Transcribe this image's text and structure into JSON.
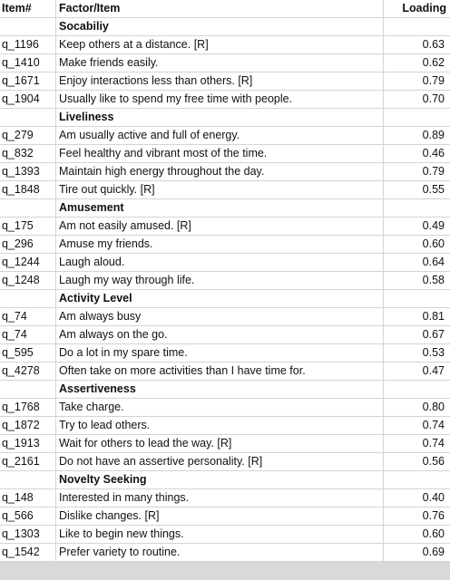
{
  "header": {
    "item": "Item#",
    "factor": "Factor/Item",
    "loading": "Loading"
  },
  "factors": [
    {
      "name": "Socabiliy",
      "items": [
        {
          "id": "q_1196",
          "text": "Keep others at a distance. [R]",
          "loading": "0.63"
        },
        {
          "id": "q_1410",
          "text": "Make friends easily.",
          "loading": "0.62"
        },
        {
          "id": "q_1671",
          "text": "Enjoy interactions less than others. [R]",
          "loading": "0.79"
        },
        {
          "id": "q_1904",
          "text": "Usually like to spend my free time with people.",
          "loading": "0.70"
        }
      ]
    },
    {
      "name": "Liveliness",
      "items": [
        {
          "id": "q_279",
          "text": "Am usually active and full of energy.",
          "loading": "0.89"
        },
        {
          "id": "q_832",
          "text": "Feel healthy and vibrant most of the time.",
          "loading": "0.46"
        },
        {
          "id": "q_1393",
          "text": "Maintain high energy throughout the day.",
          "loading": "0.79"
        },
        {
          "id": "q_1848",
          "text": "Tire out quickly. [R]",
          "loading": "0.55"
        }
      ]
    },
    {
      "name": "Amusement",
      "items": [
        {
          "id": "q_175",
          "text": "Am not easily amused. [R]",
          "loading": "0.49"
        },
        {
          "id": "q_296",
          "text": "Amuse my friends.",
          "loading": "0.60"
        },
        {
          "id": "q_1244",
          "text": "Laugh aloud.",
          "loading": "0.64"
        },
        {
          "id": "q_1248",
          "text": "Laugh my way through life.",
          "loading": "0.58"
        }
      ]
    },
    {
      "name": "Activity Level",
      "items": [
        {
          "id": "q_74",
          "text": "Am always busy",
          "loading": "0.81"
        },
        {
          "id": "q_74",
          "text": "Am always on the go.",
          "loading": "0.67"
        },
        {
          "id": "q_595",
          "text": "Do a lot in my spare time.",
          "loading": "0.53"
        },
        {
          "id": "q_4278",
          "text": "Often take on more activities than I have time for.",
          "loading": "0.47"
        }
      ]
    },
    {
      "name": "Assertiveness",
      "items": [
        {
          "id": "q_1768",
          "text": "Take charge.",
          "loading": "0.80"
        },
        {
          "id": "q_1872",
          "text": "Try to lead others.",
          "loading": "0.74"
        },
        {
          "id": "q_1913",
          "text": "Wait for others to lead the way. [R]",
          "loading": "0.74"
        },
        {
          "id": "q_2161",
          "text": "Do not have an assertive personality. [R]",
          "loading": "0.56"
        }
      ]
    },
    {
      "name": "Novelty Seeking",
      "items": [
        {
          "id": "q_148",
          "text": "Interested in many things.",
          "loading": "0.40"
        },
        {
          "id": "q_566",
          "text": "Dislike changes. [R]",
          "loading": "0.76"
        },
        {
          "id": "q_1303",
          "text": "Like to begin new things.",
          "loading": "0.60"
        },
        {
          "id": "q_1542",
          "text": "Prefer variety to routine.",
          "loading": "0.69"
        }
      ]
    }
  ]
}
